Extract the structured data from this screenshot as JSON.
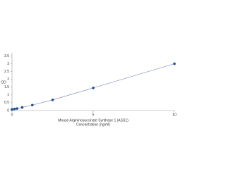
{
  "chart_data": {
    "type": "scatter",
    "x_label": [
      "Mouse Argininosuccinate Synthase 1 (ASS1)",
      "Concentration (ng/ml)"
    ],
    "y_label": "OD",
    "x": [
      0,
      0.156,
      0.3125,
      0.625,
      1.25,
      2.5,
      5,
      10
    ],
    "series": [
      {
        "color": "#1f4e8c",
        "values": [
          0.07,
          0.1,
          0.13,
          0.2,
          0.35,
          0.68,
          1.45,
          3.0
        ]
      }
    ],
    "xlim": [
      0,
      10
    ],
    "xticks": [
      0,
      5,
      10
    ],
    "ylim": [
      0,
      3.7
    ],
    "yticks": [
      0,
      0.5,
      1,
      1.5,
      2,
      2.5,
      3,
      3.5
    ],
    "fit_line": true
  }
}
